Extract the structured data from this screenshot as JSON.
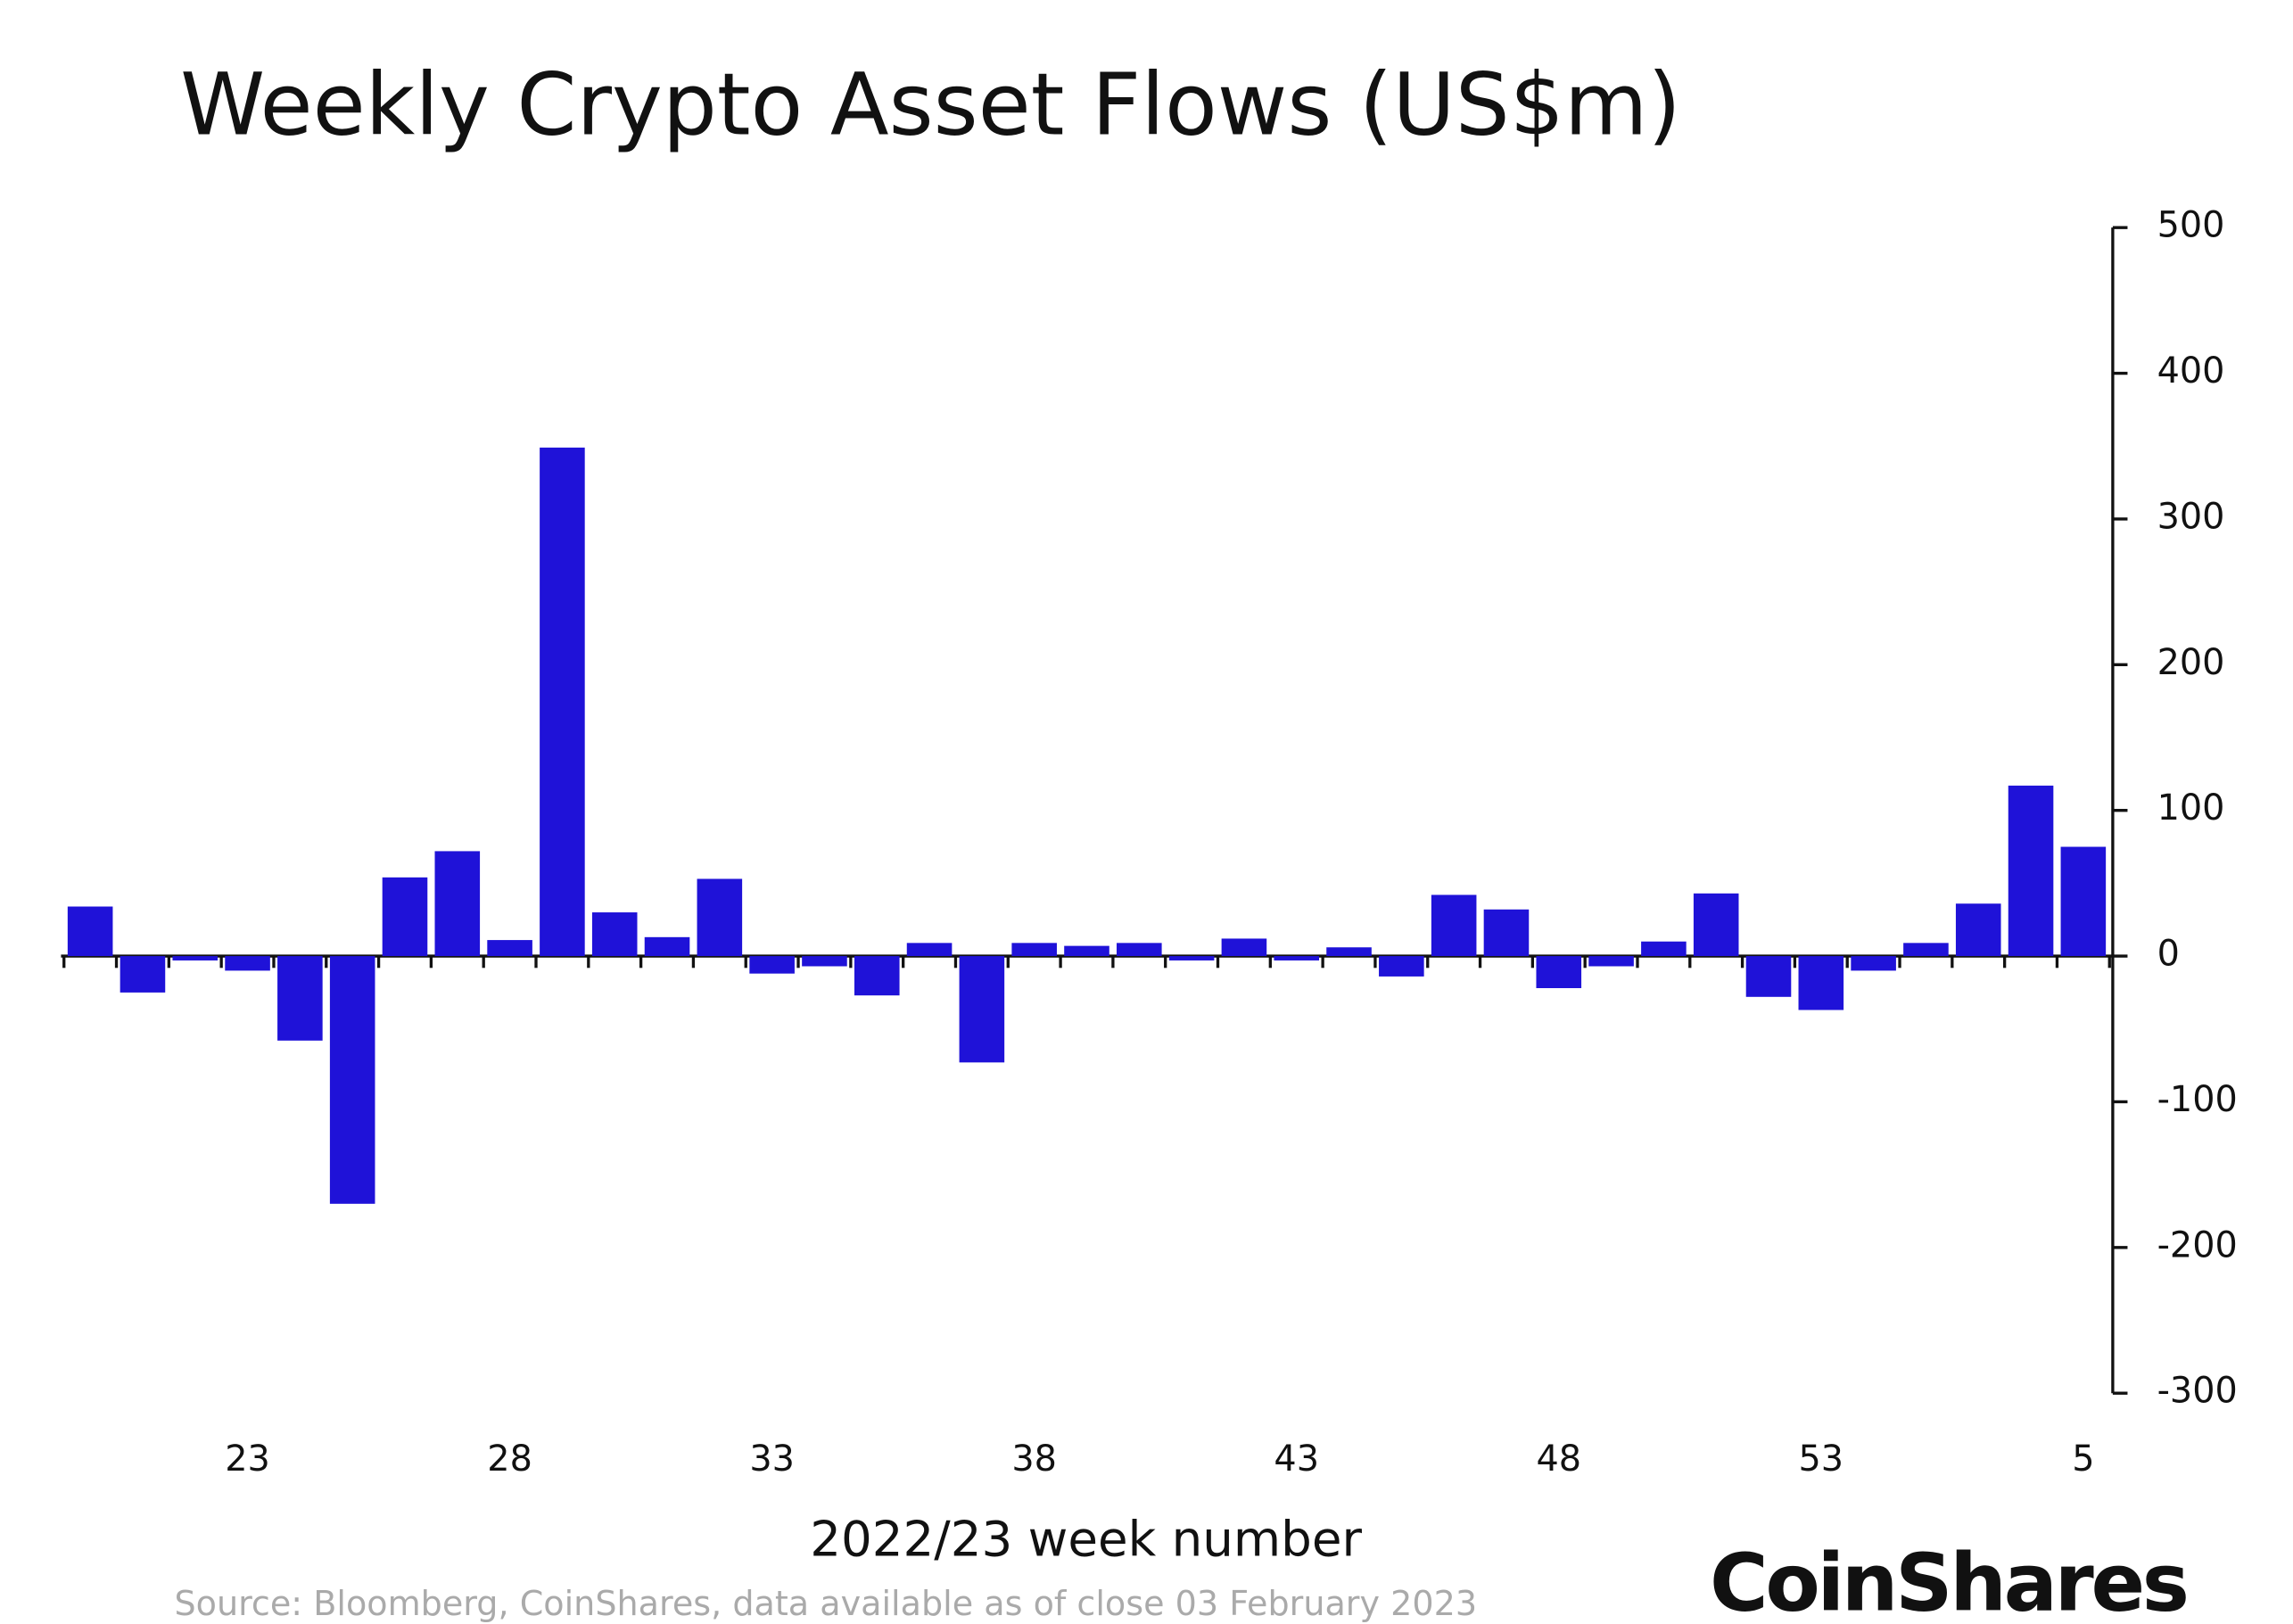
{
  "chart_data": {
    "type": "bar",
    "title": "Weekly Crypto Asset Flows (US$m)",
    "x_label": "2022/23 week number",
    "source": "Source: Bloomberg, CoinShares, data available as of close 03 February 2023",
    "brand": "CoinShares",
    "categories": [
      null,
      null,
      null,
      "23",
      null,
      null,
      null,
      null,
      "28",
      null,
      null,
      null,
      null,
      "33",
      null,
      null,
      null,
      null,
      "38",
      null,
      null,
      null,
      null,
      "43",
      null,
      null,
      null,
      null,
      "48",
      null,
      null,
      null,
      null,
      "53",
      null,
      null,
      null,
      null,
      "5"
    ],
    "values": [
      34,
      -25,
      -3,
      -10,
      -58,
      -170,
      54,
      72,
      11,
      349,
      30,
      13,
      53,
      -12,
      -7,
      -27,
      9,
      -73,
      9,
      7,
      9,
      -3,
      12,
      -3,
      6,
      -14,
      42,
      32,
      -22,
      -7,
      10,
      43,
      -28,
      -37,
      -10,
      9,
      36,
      117,
      75
    ],
    "color": "#1f12d8",
    "ylim": [
      -300,
      500
    ],
    "yticks": [
      -300,
      -200,
      -100,
      0,
      100,
      200,
      300,
      400,
      500
    ],
    "y_axis_side": "right"
  }
}
